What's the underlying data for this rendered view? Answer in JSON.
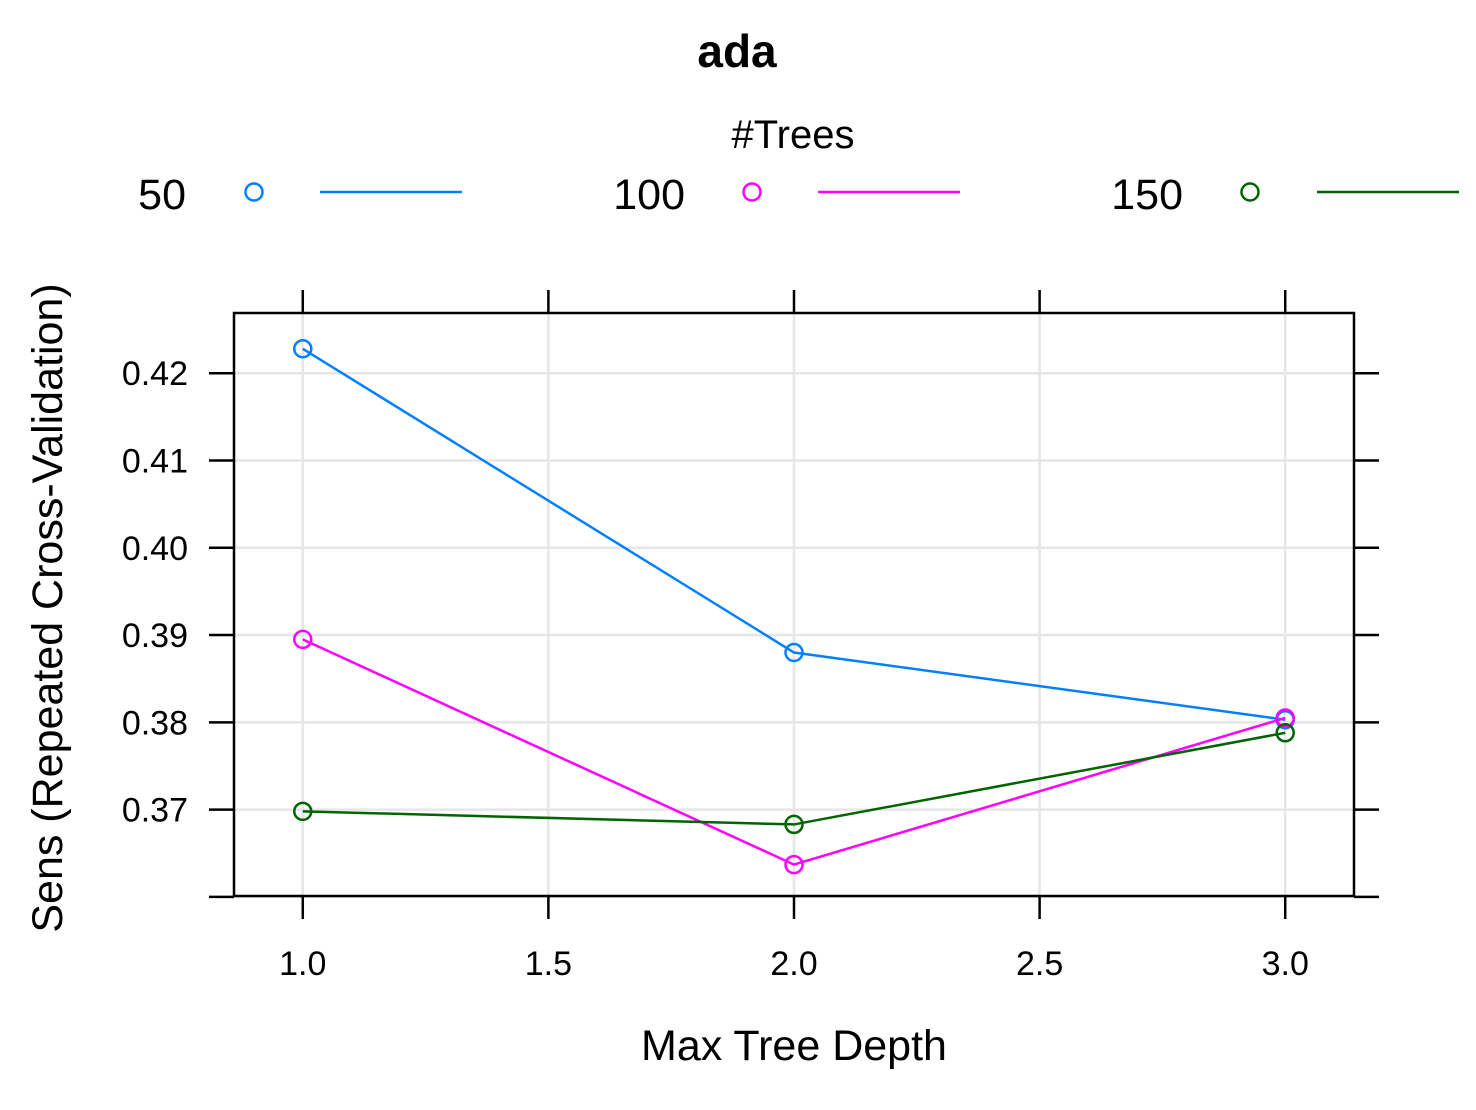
{
  "chart_data": {
    "type": "line",
    "title": "ada",
    "xlabel": "Max Tree Depth",
    "ylabel": "Sens (Repeated Cross-Validation)",
    "legend_title": "#Trees",
    "legend_position": "top",
    "grid": true,
    "xlim": [
      0.86,
      3.14
    ],
    "ylim": [
      0.3601,
      0.4269
    ],
    "x_ticks": [
      1.0,
      1.5,
      2.0,
      2.5,
      3.0
    ],
    "x_tick_labels": [
      "1.0",
      "1.5",
      "2.0",
      "2.5",
      "3.0"
    ],
    "y_ticks": [
      0.36,
      0.37,
      0.38,
      0.39,
      0.4,
      0.41,
      0.42
    ],
    "y_tick_labels": [
      "",
      "0.37",
      "0.38",
      "0.39",
      "0.40",
      "0.41",
      "0.42"
    ],
    "x": [
      1,
      2,
      3
    ],
    "series": [
      {
        "name": "50",
        "color": "#0080ff",
        "values": [
          0.4228,
          0.388,
          0.3803
        ]
      },
      {
        "name": "100",
        "color": "#ff00ff",
        "values": [
          0.3895,
          0.3637,
          0.3805
        ]
      },
      {
        "name": "150",
        "color": "#006400",
        "values": [
          0.3698,
          0.3683,
          0.3788
        ]
      }
    ]
  }
}
